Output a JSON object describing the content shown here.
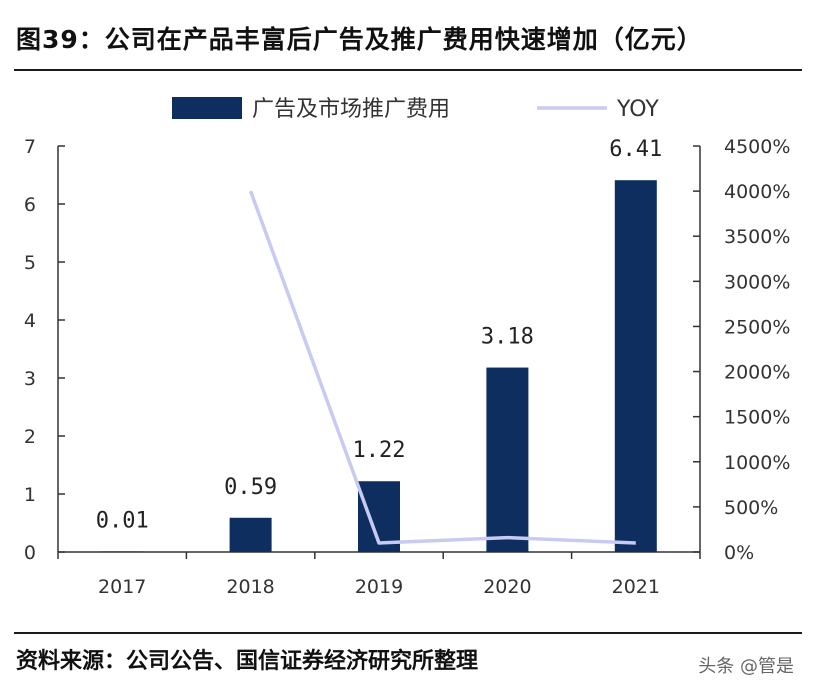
{
  "header": {
    "title": "图39：公司在产品丰富后广告及推广费用快速增加（亿元）"
  },
  "footer": {
    "source": "资料来源：公司公告、国信证券经济研究所整理",
    "watermark": "头条 @管是"
  },
  "colors": {
    "bar": "#0d2e5e",
    "line": "#c9caf2",
    "axis": "#333333"
  },
  "chart_data": {
    "type": "bar",
    "categories": [
      "2017",
      "2018",
      "2019",
      "2020",
      "2021"
    ],
    "series": [
      {
        "name": "广告及市场推广费用",
        "type": "bar",
        "axis": "left",
        "values": [
          0.01,
          0.59,
          1.22,
          3.18,
          6.41
        ],
        "data_labels": [
          "0.01",
          "0.59",
          "1.22",
          "3.18",
          "6.41"
        ]
      },
      {
        "name": "YOY",
        "type": "line",
        "axis": "right",
        "values": [
          null,
          4000,
          100,
          160,
          100
        ]
      }
    ],
    "ylim_left": [
      0,
      7
    ],
    "ylim_right": [
      0,
      4500
    ],
    "yticks_left": [
      "0",
      "1",
      "2",
      "3",
      "4",
      "5",
      "6",
      "7"
    ],
    "yticks_right": [
      "0%",
      "500%",
      "1000%",
      "1500%",
      "2000%",
      "2500%",
      "3000%",
      "3500%",
      "4000%",
      "4500%"
    ],
    "legend_position": "top",
    "grid": false
  }
}
